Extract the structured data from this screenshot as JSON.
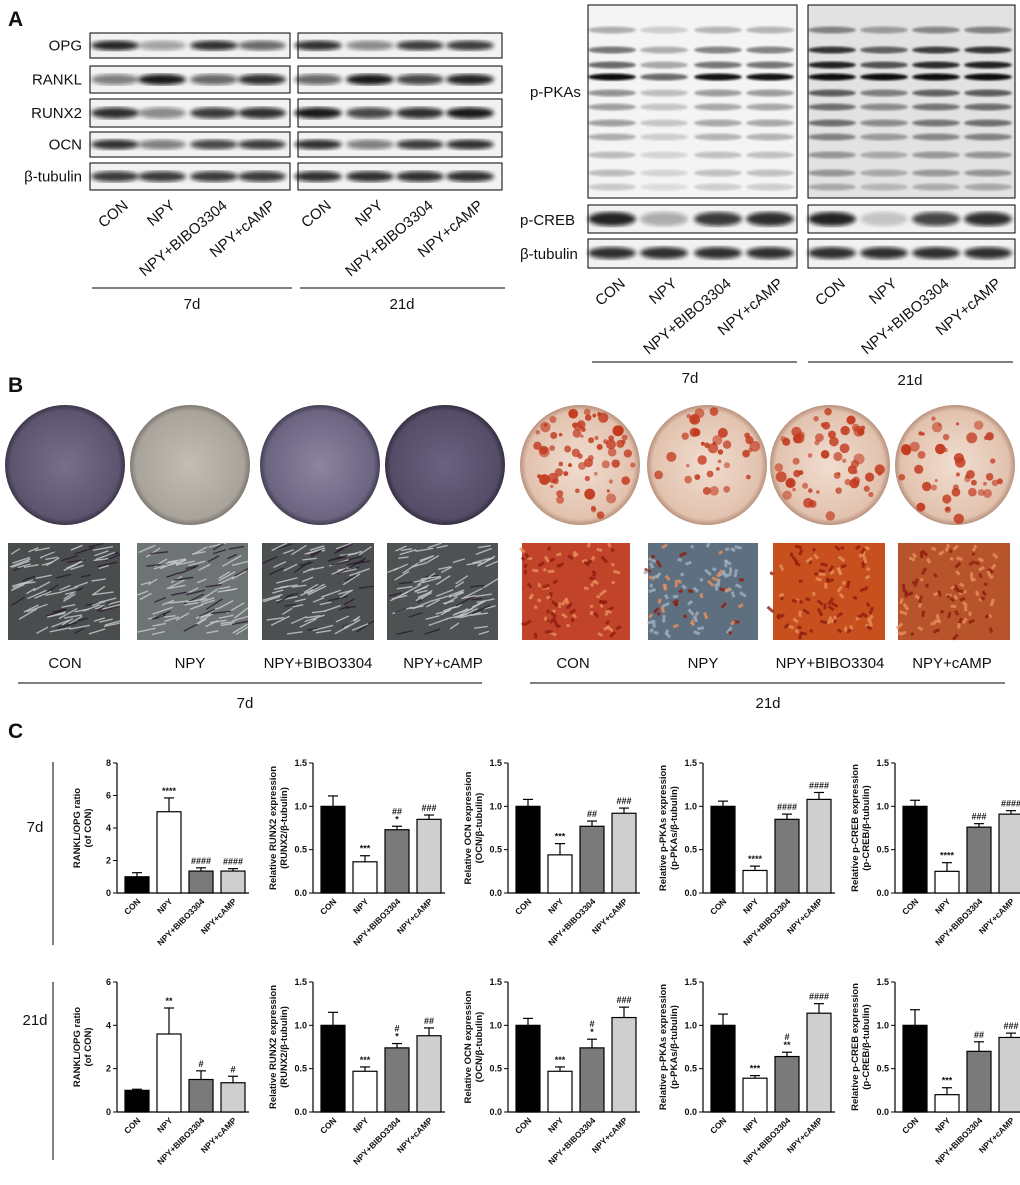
{
  "panel_a": {
    "letter": "A",
    "left_rows": [
      "OPG",
      "RANKL",
      "RUNX2",
      "OCN",
      "β-tubulin"
    ],
    "right_rows": [
      "p-PKAs",
      "p-CREB",
      "β-tubulin"
    ],
    "conditions": [
      "CON",
      "NPY",
      "NPY+BIBO3304",
      "NPY+cAMP"
    ],
    "times": [
      "7d",
      "21d"
    ]
  },
  "panel_b": {
    "letter": "B",
    "conditions": [
      "CON",
      "NPY",
      "NPY+BIBO3304",
      "NPY+cAMP"
    ],
    "times": [
      "7d",
      "21d"
    ]
  },
  "panel_c": {
    "letter": "C",
    "rows": [
      "7d",
      "21d"
    ]
  },
  "chart_data": [
    {
      "type": "bar",
      "ylabel": [
        "RANKL/OPG ratio",
        "(of CON)"
      ],
      "categories": [
        "CON",
        "NPY",
        "NPY+BIBO3304",
        "NPY+cAMP"
      ],
      "colors": [
        "#000000",
        "#ffffff",
        "#7a7a7a",
        "#cfcfcf"
      ],
      "values": [
        1.0,
        5.0,
        1.35,
        1.35
      ],
      "errors": [
        0.25,
        0.85,
        0.2,
        0.15
      ],
      "annotations": [
        [],
        [
          "****"
        ],
        [
          "####"
        ],
        [
          "####"
        ]
      ],
      "ylim": [
        0,
        8
      ],
      "yticks": [
        0,
        2,
        4,
        6,
        8
      ]
    },
    {
      "type": "bar",
      "ylabel": [
        "Relative RUNX2 expression",
        "(RUNX2/β-tubulin)"
      ],
      "categories": [
        "CON",
        "NPY",
        "NPY+BIBO3304",
        "NPY+cAMP"
      ],
      "colors": [
        "#000000",
        "#ffffff",
        "#7a7a7a",
        "#cfcfcf"
      ],
      "values": [
        1.0,
        0.36,
        0.73,
        0.85
      ],
      "errors": [
        0.12,
        0.07,
        0.04,
        0.05
      ],
      "annotations": [
        [],
        [
          "***"
        ],
        [
          "##",
          "*"
        ],
        [
          "###"
        ]
      ],
      "ylim": [
        0,
        1.5
      ],
      "yticks": [
        {
          "value": 0,
          "label": "0.0"
        },
        {
          "value": 0.5,
          "label": "0.5"
        },
        {
          "value": 1,
          "label": "1.0"
        },
        {
          "value": 1.5,
          "label": "1.5"
        }
      ]
    },
    {
      "type": "bar",
      "ylabel": [
        "Relative OCN expression",
        "(OCN/β-tubulin)"
      ],
      "categories": [
        "CON",
        "NPY",
        "NPY+BIBO3304",
        "NPY+cAMP"
      ],
      "colors": [
        "#000000",
        "#ffffff",
        "#7a7a7a",
        "#cfcfcf"
      ],
      "values": [
        1.0,
        0.44,
        0.77,
        0.92
      ],
      "errors": [
        0.08,
        0.13,
        0.06,
        0.06
      ],
      "annotations": [
        [],
        [
          "***"
        ],
        [
          "##"
        ],
        [
          "###"
        ]
      ],
      "ylim": [
        0,
        1.5
      ],
      "yticks": [
        {
          "value": 0,
          "label": "0.0"
        },
        {
          "value": 0.5,
          "label": "0.5"
        },
        {
          "value": 1,
          "label": "1.0"
        },
        {
          "value": 1.5,
          "label": "1.5"
        }
      ]
    },
    {
      "type": "bar",
      "ylabel": [
        "Relative p-PKAs expression",
        "(p-PKAs/β-tubulin)"
      ],
      "categories": [
        "CON",
        "NPY",
        "NPY+BIBO3304",
        "NPY+cAMP"
      ],
      "colors": [
        "#000000",
        "#ffffff",
        "#7a7a7a",
        "#cfcfcf"
      ],
      "values": [
        1.0,
        0.26,
        0.85,
        1.08
      ],
      "errors": [
        0.06,
        0.05,
        0.06,
        0.08
      ],
      "annotations": [
        [],
        [
          "****"
        ],
        [
          "####"
        ],
        [
          "####"
        ]
      ],
      "ylim": [
        0,
        1.5
      ],
      "yticks": [
        {
          "value": 0,
          "label": "0.0"
        },
        {
          "value": 0.5,
          "label": "0.5"
        },
        {
          "value": 1,
          "label": "1.0"
        },
        {
          "value": 1.5,
          "label": "1.5"
        }
      ]
    },
    {
      "type": "bar",
      "ylabel": [
        "Relative p-CREB expression",
        "(p-CREB/β-tubulin)"
      ],
      "categories": [
        "CON",
        "NPY",
        "NPY+BIBO3304",
        "NPY+cAMP"
      ],
      "colors": [
        "#000000",
        "#ffffff",
        "#7a7a7a",
        "#cfcfcf"
      ],
      "values": [
        1.0,
        0.25,
        0.76,
        0.91
      ],
      "errors": [
        0.07,
        0.1,
        0.04,
        0.04
      ],
      "annotations": [
        [],
        [
          "****"
        ],
        [
          "###"
        ],
        [
          "####"
        ]
      ],
      "ylim": [
        0,
        1.5
      ],
      "yticks": [
        {
          "value": 0,
          "label": "0.0"
        },
        {
          "value": 0.5,
          "label": "0.5"
        },
        {
          "value": 1,
          "label": "1.0"
        },
        {
          "value": 1.5,
          "label": "1.5"
        }
      ]
    },
    {
      "type": "bar",
      "ylabel": [
        "RANKL/OPG ratio",
        "(of CON)"
      ],
      "categories": [
        "CON",
        "NPY",
        "NPY+BIBO3304",
        "NPY+cAMP"
      ],
      "colors": [
        "#000000",
        "#ffffff",
        "#7a7a7a",
        "#cfcfcf"
      ],
      "values": [
        1.0,
        3.6,
        1.5,
        1.35
      ],
      "errors": [
        0.05,
        1.2,
        0.4,
        0.3
      ],
      "annotations": [
        [],
        [
          "**"
        ],
        [
          "#"
        ],
        [
          "#"
        ]
      ],
      "ylim": [
        0,
        6
      ],
      "yticks": [
        0,
        2,
        4,
        6
      ]
    },
    {
      "type": "bar",
      "ylabel": [
        "Relative RUNX2 expression",
        "(RUNX2/β-tubulin)"
      ],
      "categories": [
        "CON",
        "NPY",
        "NPY+BIBO3304",
        "NPY+cAMP"
      ],
      "colors": [
        "#000000",
        "#ffffff",
        "#7a7a7a",
        "#cfcfcf"
      ],
      "values": [
        1.0,
        0.47,
        0.74,
        0.88
      ],
      "errors": [
        0.15,
        0.05,
        0.05,
        0.09
      ],
      "annotations": [
        [],
        [
          "***"
        ],
        [
          "#",
          "*"
        ],
        [
          "##"
        ]
      ],
      "ylim": [
        0,
        1.5
      ],
      "yticks": [
        {
          "value": 0,
          "label": "0.0"
        },
        {
          "value": 0.5,
          "label": "0.5"
        },
        {
          "value": 1,
          "label": "1.0"
        },
        {
          "value": 1.5,
          "label": "1.5"
        }
      ]
    },
    {
      "type": "bar",
      "ylabel": [
        "Relative OCN expression",
        "(OCN/β-tubulin)"
      ],
      "categories": [
        "CON",
        "NPY",
        "NPY+BIBO3304",
        "NPY+cAMP"
      ],
      "colors": [
        "#000000",
        "#ffffff",
        "#7a7a7a",
        "#cfcfcf"
      ],
      "values": [
        1.0,
        0.47,
        0.74,
        1.09
      ],
      "errors": [
        0.08,
        0.05,
        0.1,
        0.12
      ],
      "annotations": [
        [],
        [
          "***"
        ],
        [
          "#",
          "*"
        ],
        [
          "###"
        ]
      ],
      "ylim": [
        0,
        1.5
      ],
      "yticks": [
        {
          "value": 0,
          "label": "0.0"
        },
        {
          "value": 0.5,
          "label": "0.5"
        },
        {
          "value": 1,
          "label": "1.0"
        },
        {
          "value": 1.5,
          "label": "1.5"
        }
      ]
    },
    {
      "type": "bar",
      "ylabel": [
        "Relative p-PKAs expression",
        "(p-PKAs/β-tubulin)"
      ],
      "categories": [
        "CON",
        "NPY",
        "NPY+BIBO3304",
        "NPY+cAMP"
      ],
      "colors": [
        "#000000",
        "#ffffff",
        "#7a7a7a",
        "#cfcfcf"
      ],
      "values": [
        1.0,
        0.39,
        0.64,
        1.14
      ],
      "errors": [
        0.13,
        0.03,
        0.05,
        0.11
      ],
      "annotations": [
        [],
        [
          "***"
        ],
        [
          "#",
          "**"
        ],
        [
          "####"
        ]
      ],
      "ylim": [
        0,
        1.5
      ],
      "yticks": [
        {
          "value": 0,
          "label": "0.0"
        },
        {
          "value": 0.5,
          "label": "0.5"
        },
        {
          "value": 1,
          "label": "1.0"
        },
        {
          "value": 1.5,
          "label": "1.5"
        }
      ]
    },
    {
      "type": "bar",
      "ylabel": [
        "Relative p-CREB expression",
        "(p-CREB/β-tubulin)"
      ],
      "categories": [
        "CON",
        "NPY",
        "NPY+BIBO3304",
        "NPY+cAMP"
      ],
      "colors": [
        "#000000",
        "#ffffff",
        "#7a7a7a",
        "#cfcfcf"
      ],
      "values": [
        1.0,
        0.2,
        0.7,
        0.86
      ],
      "errors": [
        0.18,
        0.08,
        0.11,
        0.05
      ],
      "annotations": [
        [],
        [
          "***"
        ],
        [
          "##"
        ],
        [
          "###"
        ]
      ],
      "ylim": [
        0,
        1.5
      ],
      "yticks": [
        {
          "value": 0,
          "label": "0.0"
        },
        {
          "value": 0.5,
          "label": "0.5"
        },
        {
          "value": 1,
          "label": "1.0"
        },
        {
          "value": 1.5,
          "label": "1.5"
        }
      ]
    }
  ]
}
